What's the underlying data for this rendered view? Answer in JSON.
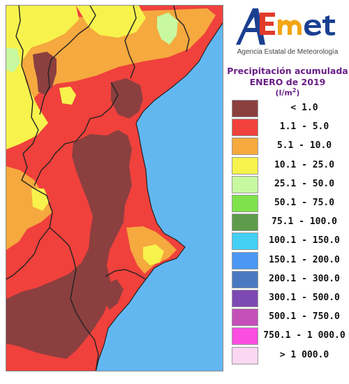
{
  "logo": {
    "text": "AEmet",
    "agency": "Agencia Estatal de Meteorología"
  },
  "title": {
    "line1": "Precipitación acumulada",
    "line2": "ENERO de 2019",
    "units": "(l/m",
    "units_sup": "2",
    "units_close": ")"
  },
  "legend": [
    {
      "label": "< 1.0",
      "color": "#8c3f3f"
    },
    {
      "label": "1.1 - 5.0",
      "color": "#f0413c"
    },
    {
      "label": "5.1 - 10.0",
      "color": "#f5a93e"
    },
    {
      "label": "10.1 - 25.0",
      "color": "#f7f34c"
    },
    {
      "label": "25.1 - 50.0",
      "color": "#c8f9a0"
    },
    {
      "label": "50.1 - 75.0",
      "color": "#7ee24a"
    },
    {
      "label": "75.1 - 100.0",
      "color": "#5e9c4c"
    },
    {
      "label": "100.1 - 150.0",
      "color": "#44d0f5"
    },
    {
      "label": "150.1 - 200.0",
      "color": "#4a98f3"
    },
    {
      "label": "200.1 - 300.0",
      "color": "#4a79c2"
    },
    {
      "label": "300.1 - 500.0",
      "color": "#7d49b3"
    },
    {
      "label": "500.1 - 750.0",
      "color": "#c44fb9"
    },
    {
      "label": "750.1 - 1 000.0",
      "color": "#fb4ee1"
    },
    {
      "label": "> 1 000.0",
      "color": "#fcd7f3"
    }
  ],
  "colors": {
    "sea": "#63b7f0",
    "title": "#6a1e86",
    "border": "#222222"
  }
}
